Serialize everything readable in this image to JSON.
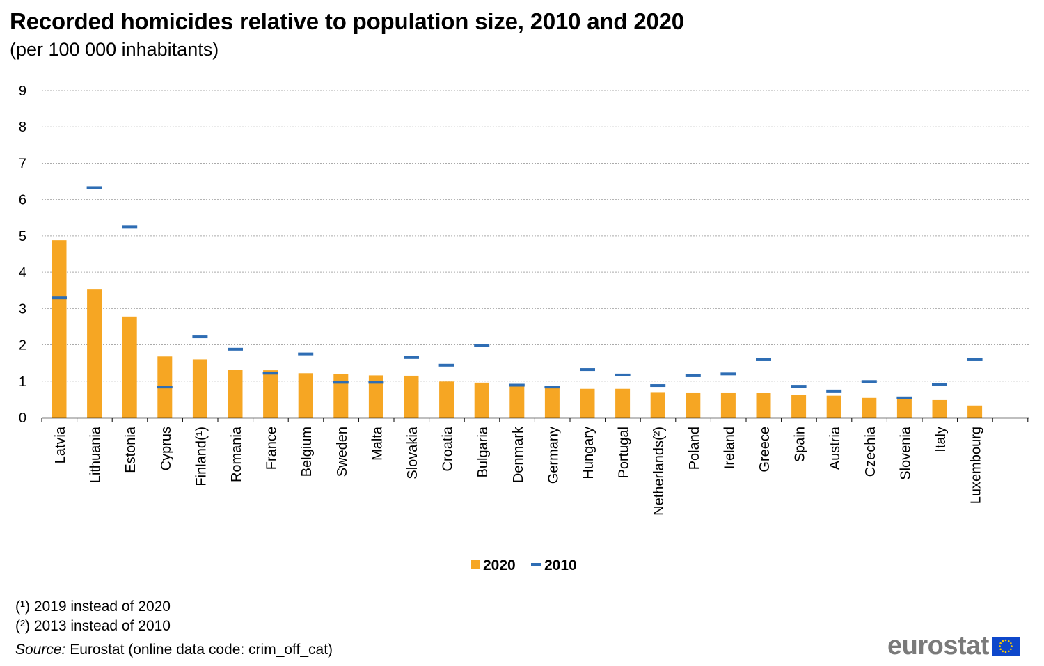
{
  "title": "Recorded homicides relative to population size, 2010 and 2020",
  "subtitle": "(per 100 000 inhabitants)",
  "colors": {
    "bar_2020": "#F6A623",
    "marker_2010": "#2E6DB4",
    "grid": "#AAAAAA",
    "axis": "#000000",
    "logo_text": "#7A7A7A",
    "flag_blue": "#0E47CB",
    "flag_star": "#FFCC00"
  },
  "chart_data": {
    "type": "bar",
    "title": "Recorded homicides relative to population size, 2010 and 2020",
    "subtitle": "(per 100 000 inhabitants)",
    "xlabel": "",
    "ylabel": "",
    "ylim": [
      0,
      9
    ],
    "yticks": [
      "0",
      "1",
      "2",
      "3",
      "4",
      "5",
      "6",
      "7",
      "8",
      "9"
    ],
    "grid": true,
    "legend_position": "bottom-center",
    "categories": [
      "Latvia",
      "Lithuania",
      "Estonia",
      "Cyprus",
      "Finland(¹)",
      "Romania",
      "France",
      "Belgium",
      "Sweden",
      "Malta",
      "Slovakia",
      "Croatia",
      "Bulgaria",
      "Denmark",
      "Germany",
      "Hungary",
      "Portugal",
      "Netherlands(²)",
      "Poland",
      "Ireland",
      "Greece",
      "Spain",
      "Austria",
      "Czechia",
      "Slovenia",
      "Italy",
      "Luxembourg"
    ],
    "series": [
      {
        "name": "2020",
        "kind": "bar",
        "values": [
          4.88,
          3.54,
          2.78,
          1.68,
          1.6,
          1.32,
          1.3,
          1.22,
          1.2,
          1.16,
          1.15,
          0.99,
          0.96,
          0.89,
          0.82,
          0.79,
          0.79,
          0.7,
          0.69,
          0.69,
          0.68,
          0.62,
          0.6,
          0.54,
          0.52,
          0.48,
          0.33
        ]
      },
      {
        "name": "2010",
        "kind": "marker",
        "values": [
          3.29,
          6.33,
          5.24,
          0.84,
          2.22,
          1.88,
          1.22,
          1.75,
          0.97,
          0.97,
          1.65,
          1.44,
          1.99,
          0.89,
          0.84,
          1.32,
          1.17,
          0.88,
          1.15,
          1.2,
          1.59,
          0.86,
          0.73,
          0.99,
          0.54,
          0.9,
          1.59
        ]
      }
    ]
  },
  "footnotes": {
    "note1": "(¹) 2019 instead of 2020",
    "note2": "(²) 2013 instead of 2010",
    "source_label": "Source:",
    "source_text": " Eurostat (online data code: crim_off_cat)"
  },
  "logo": {
    "text": "eurostat",
    "icon": "eu-flag-icon"
  }
}
